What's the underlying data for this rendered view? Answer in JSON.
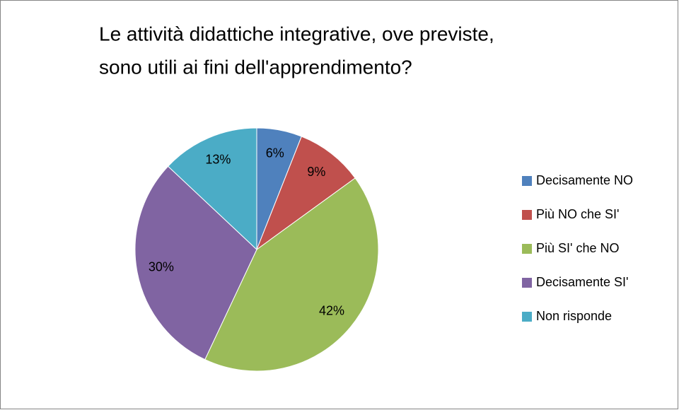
{
  "chart_data": {
    "type": "pie",
    "title": [
      "Le attività didattiche integrative, ove previste,",
      "sono utili ai fini dell'apprendimento?"
    ],
    "categories": [
      "Decisamente NO",
      "Più NO che SI'",
      "Più SI' che NO",
      "Decisamente SI'",
      "Non risponde"
    ],
    "values": [
      6,
      9,
      42,
      30,
      13
    ],
    "value_labels": [
      "6%",
      "9%",
      "42%",
      "30%",
      "13%"
    ],
    "colors": [
      "#4f81bd",
      "#c0504d",
      "#9bbb59",
      "#8064a2",
      "#4bacc6"
    ],
    "legend": "right"
  }
}
